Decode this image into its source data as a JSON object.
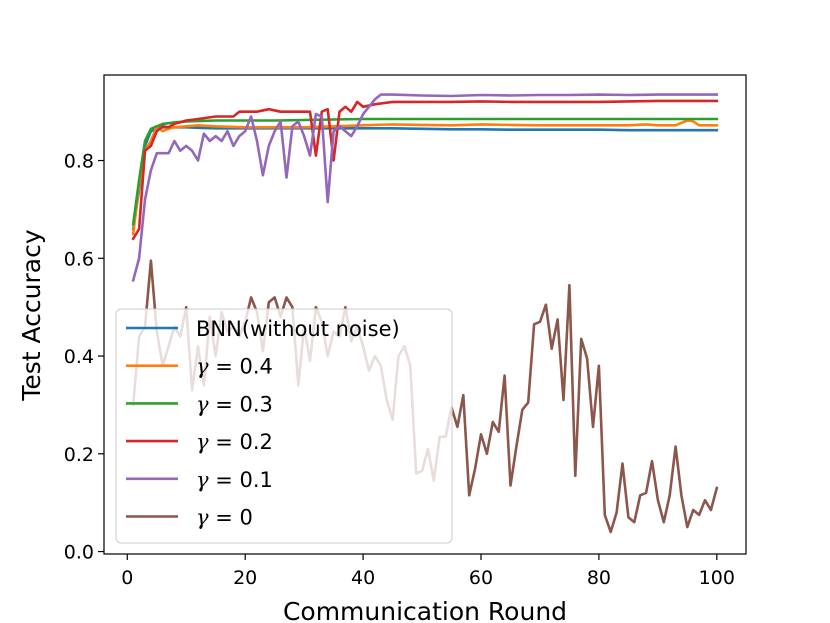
{
  "chart_data": {
    "type": "line",
    "title": "",
    "xlabel": "Communication Round",
    "ylabel": "Test Accuracy",
    "xlim": [
      -3.95,
      104.95
    ],
    "ylim": [
      -0.005,
      0.975
    ],
    "xticks": [
      "0",
      "20",
      "40",
      "60",
      "80",
      "100"
    ],
    "xtick_values": [
      0,
      20,
      40,
      60,
      80,
      100
    ],
    "yticks": [
      "0.0",
      "0.2",
      "0.4",
      "0.6",
      "0.8"
    ],
    "ytick_values": [
      0.0,
      0.2,
      0.4,
      0.6,
      0.8
    ],
    "grid": false,
    "legend_position": "lower-left",
    "series": [
      {
        "name": "BNN(without noise)",
        "legend": "BNN(without noise)",
        "math": false,
        "color": "#1f77b4",
        "x": [
          1,
          2,
          3,
          4,
          5,
          6,
          8,
          10,
          12,
          15,
          20,
          25,
          30,
          35,
          40,
          45,
          50,
          55,
          60,
          65,
          70,
          75,
          80,
          85,
          90,
          95,
          100
        ],
        "y": [
          0.66,
          0.74,
          0.83,
          0.86,
          0.866,
          0.868,
          0.868,
          0.868,
          0.867,
          0.866,
          0.866,
          0.866,
          0.866,
          0.866,
          0.866,
          0.866,
          0.865,
          0.864,
          0.864,
          0.863,
          0.863,
          0.863,
          0.863,
          0.862,
          0.862,
          0.862,
          0.862
        ]
      },
      {
        "name": "γ = 0.4",
        "legend": "γ = 0.4",
        "math": true,
        "color": "#ff7f0e",
        "x": [
          1,
          2,
          3,
          4,
          5,
          6,
          7,
          8,
          10,
          12,
          15,
          20,
          25,
          30,
          35,
          40,
          45,
          50,
          55,
          60,
          65,
          70,
          75,
          80,
          85,
          88,
          90,
          93,
          95,
          96,
          97,
          100
        ],
        "y": [
          0.65,
          0.75,
          0.82,
          0.84,
          0.87,
          0.86,
          0.865,
          0.868,
          0.87,
          0.872,
          0.87,
          0.868,
          0.868,
          0.868,
          0.87,
          0.872,
          0.874,
          0.873,
          0.872,
          0.874,
          0.873,
          0.872,
          0.872,
          0.872,
          0.872,
          0.874,
          0.872,
          0.872,
          0.882,
          0.88,
          0.872,
          0.872
        ]
      },
      {
        "name": "γ = 0.3",
        "legend": "γ = 0.3",
        "math": true,
        "color": "#2ca02c",
        "x": [
          1,
          2,
          3,
          4,
          5,
          6,
          8,
          10,
          15,
          20,
          25,
          30,
          35,
          40,
          50,
          60,
          70,
          80,
          90,
          100
        ],
        "y": [
          0.67,
          0.76,
          0.84,
          0.865,
          0.87,
          0.875,
          0.878,
          0.88,
          0.882,
          0.882,
          0.882,
          0.883,
          0.884,
          0.885,
          0.885,
          0.885,
          0.885,
          0.885,
          0.885,
          0.885
        ]
      },
      {
        "name": "γ = 0.2",
        "legend": "γ = 0.2",
        "math": true,
        "color": "#d62728",
        "x": [
          1,
          2,
          3,
          4,
          5,
          6,
          7,
          8,
          10,
          12,
          15,
          18,
          19,
          20,
          22,
          24,
          26,
          28,
          30,
          31,
          32,
          33,
          34,
          35,
          36,
          37,
          38,
          39,
          40,
          42,
          45,
          50,
          55,
          60,
          65,
          70,
          75,
          80,
          85,
          90,
          95,
          100
        ],
        "y": [
          0.64,
          0.66,
          0.82,
          0.83,
          0.86,
          0.87,
          0.868,
          0.875,
          0.882,
          0.885,
          0.89,
          0.89,
          0.9,
          0.9,
          0.9,
          0.905,
          0.9,
          0.9,
          0.9,
          0.9,
          0.81,
          0.9,
          0.905,
          0.8,
          0.9,
          0.91,
          0.9,
          0.92,
          0.91,
          0.915,
          0.92,
          0.92,
          0.92,
          0.921,
          0.92,
          0.92,
          0.92,
          0.92,
          0.921,
          0.922,
          0.922,
          0.922
        ]
      },
      {
        "name": "γ = 0.1",
        "legend": "γ = 0.1",
        "math": true,
        "color": "#9467bd",
        "x": [
          1,
          2,
          3,
          4,
          5,
          6,
          7,
          8,
          9,
          10,
          11,
          12,
          13,
          14,
          15,
          16,
          17,
          18,
          19,
          20,
          21,
          22,
          23,
          24,
          25,
          26,
          27,
          28,
          29,
          30,
          31,
          32,
          33,
          34,
          35,
          36,
          37,
          38,
          39,
          40,
          41,
          42,
          43,
          45,
          50,
          55,
          60,
          65,
          70,
          75,
          80,
          85,
          90,
          95,
          100
        ],
        "y": [
          0.555,
          0.6,
          0.72,
          0.78,
          0.815,
          0.815,
          0.815,
          0.84,
          0.82,
          0.83,
          0.82,
          0.8,
          0.855,
          0.84,
          0.85,
          0.84,
          0.86,
          0.83,
          0.85,
          0.86,
          0.89,
          0.84,
          0.77,
          0.83,
          0.86,
          0.88,
          0.765,
          0.87,
          0.88,
          0.85,
          0.81,
          0.895,
          0.89,
          0.715,
          0.86,
          0.87,
          0.86,
          0.85,
          0.87,
          0.895,
          0.91,
          0.925,
          0.935,
          0.935,
          0.933,
          0.932,
          0.934,
          0.933,
          0.934,
          0.934,
          0.935,
          0.934,
          0.935,
          0.935,
          0.935
        ]
      },
      {
        "name": "γ = 0",
        "legend": "γ = 0",
        "math": true,
        "color": "#8c564b",
        "x": [
          1,
          2,
          3,
          4,
          5,
          6,
          7,
          8,
          9,
          10,
          11,
          12,
          13,
          14,
          15,
          16,
          17,
          18,
          19,
          20,
          21,
          22,
          23,
          24,
          25,
          26,
          27,
          28,
          29,
          30,
          31,
          32,
          33,
          34,
          35,
          36,
          37,
          38,
          39,
          40,
          41,
          42,
          43,
          44,
          45,
          46,
          47,
          48,
          49,
          50,
          51,
          52,
          53,
          54,
          55,
          56,
          57,
          58,
          59,
          60,
          61,
          62,
          63,
          64,
          65,
          66,
          67,
          68,
          69,
          70,
          71,
          72,
          73,
          74,
          75,
          76,
          77,
          78,
          79,
          80,
          81,
          82,
          83,
          84,
          85,
          86,
          87,
          88,
          89,
          90,
          91,
          92,
          93,
          94,
          95,
          96,
          97,
          98,
          99,
          100
        ],
        "y": [
          0.3,
          0.44,
          0.46,
          0.595,
          0.45,
          0.38,
          0.42,
          0.46,
          0.44,
          0.5,
          0.33,
          0.42,
          0.34,
          0.48,
          0.4,
          0.49,
          0.45,
          0.46,
          0.44,
          0.47,
          0.52,
          0.49,
          0.41,
          0.51,
          0.52,
          0.48,
          0.52,
          0.5,
          0.34,
          0.46,
          0.39,
          0.5,
          0.47,
          0.4,
          0.45,
          0.44,
          0.5,
          0.43,
          0.46,
          0.42,
          0.37,
          0.4,
          0.38,
          0.31,
          0.27,
          0.4,
          0.42,
          0.38,
          0.16,
          0.165,
          0.21,
          0.145,
          0.235,
          0.235,
          0.295,
          0.255,
          0.32,
          0.115,
          0.17,
          0.24,
          0.2,
          0.265,
          0.245,
          0.36,
          0.135,
          0.215,
          0.29,
          0.305,
          0.465,
          0.47,
          0.505,
          0.415,
          0.475,
          0.31,
          0.545,
          0.155,
          0.435,
          0.395,
          0.255,
          0.38,
          0.075,
          0.04,
          0.08,
          0.18,
          0.07,
          0.06,
          0.115,
          0.12,
          0.185,
          0.105,
          0.06,
          0.115,
          0.215,
          0.115,
          0.05,
          0.085,
          0.075,
          0.105,
          0.085,
          0.13
        ]
      }
    ]
  }
}
